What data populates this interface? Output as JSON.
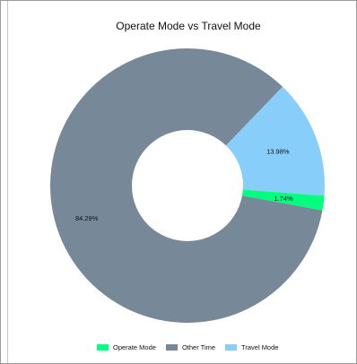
{
  "chart_data": {
    "type": "pie",
    "title": "Operate Mode vs Travel Mode",
    "donut": true,
    "labels": [
      "Operate Mode",
      "Other Time",
      "Travel Mode"
    ],
    "values": [
      1.74,
      84.29,
      13.98
    ],
    "value_labels": [
      "1.74%",
      "84.29%",
      "13.98%"
    ],
    "colors": [
      "#00FF7F",
      "#778899",
      "#87CEFA"
    ],
    "legend_position": "bottom"
  }
}
